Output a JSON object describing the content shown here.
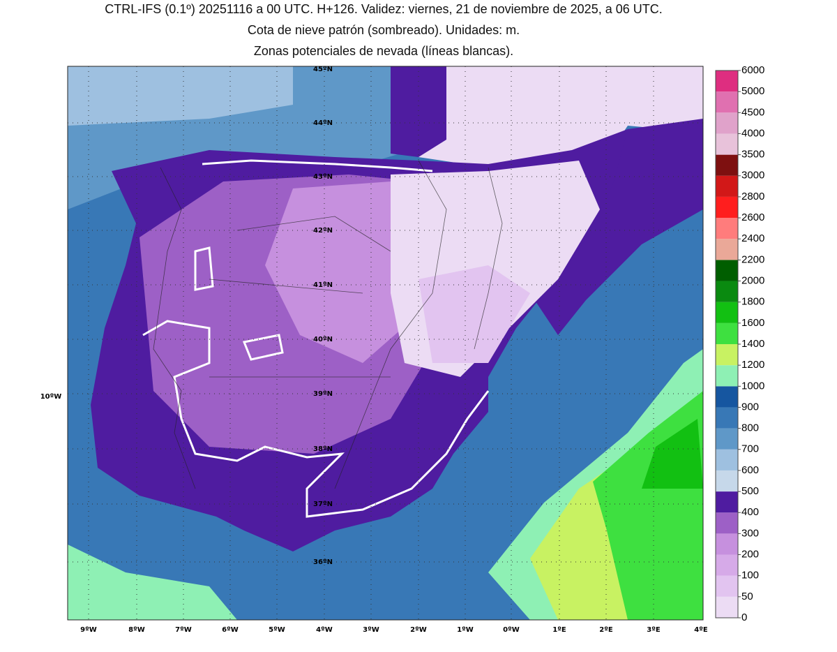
{
  "header": {
    "lines": [
      "CTRL-IFS (0.1º) 20251116 a 00 UTC. H+126. Validez: viernes, 21 de noviembre de 2025, a 06 UTC.",
      "Cota de nieve patrón (sombreado). Unidades: m.",
      "Zonas potenciales de nevada (líneas blancas)."
    ]
  },
  "map": {
    "lat_labels": [
      "45ºN",
      "44ºN",
      "43ºN",
      "42ºN",
      "41ºN",
      "40ºN",
      "39ºN",
      "38ºN",
      "37ºN",
      "36ºN"
    ],
    "west_label": "10ºW",
    "lon_labels": [
      "9ºW",
      "8ºW",
      "7ºW",
      "6ºW",
      "5ºW",
      "4ºW",
      "3ºW",
      "2ºW",
      "1ºW",
      "0ºW",
      "1ºE",
      "2ºE",
      "3ºE",
      "4ºE"
    ]
  },
  "colorbar": {
    "levels": [
      0,
      50,
      100,
      200,
      300,
      400,
      500,
      600,
      700,
      800,
      900,
      1000,
      1200,
      1400,
      1600,
      1800,
      2000,
      2200,
      2400,
      2600,
      2800,
      3000,
      3500,
      4000,
      4500,
      5000,
      6000
    ],
    "colors": [
      "#ecdcf4",
      "#e2c4f0",
      "#d6aae8",
      "#c690de",
      "#9d60c6",
      "#4f1ca0",
      "#c6d8ea",
      "#9ec0e0",
      "#5f98c8",
      "#3878b6",
      "#1656a0",
      "#8ef0b4",
      "#c8f262",
      "#3ee040",
      "#12c012",
      "#0a8a10",
      "#005e00",
      "#eaa898",
      "#ff7c7c",
      "#ff1e1e",
      "#d21818",
      "#7e1010",
      "#e8c2da",
      "#e0a2ca",
      "#e070b0",
      "#de2e80",
      "#a00040"
    ]
  }
}
